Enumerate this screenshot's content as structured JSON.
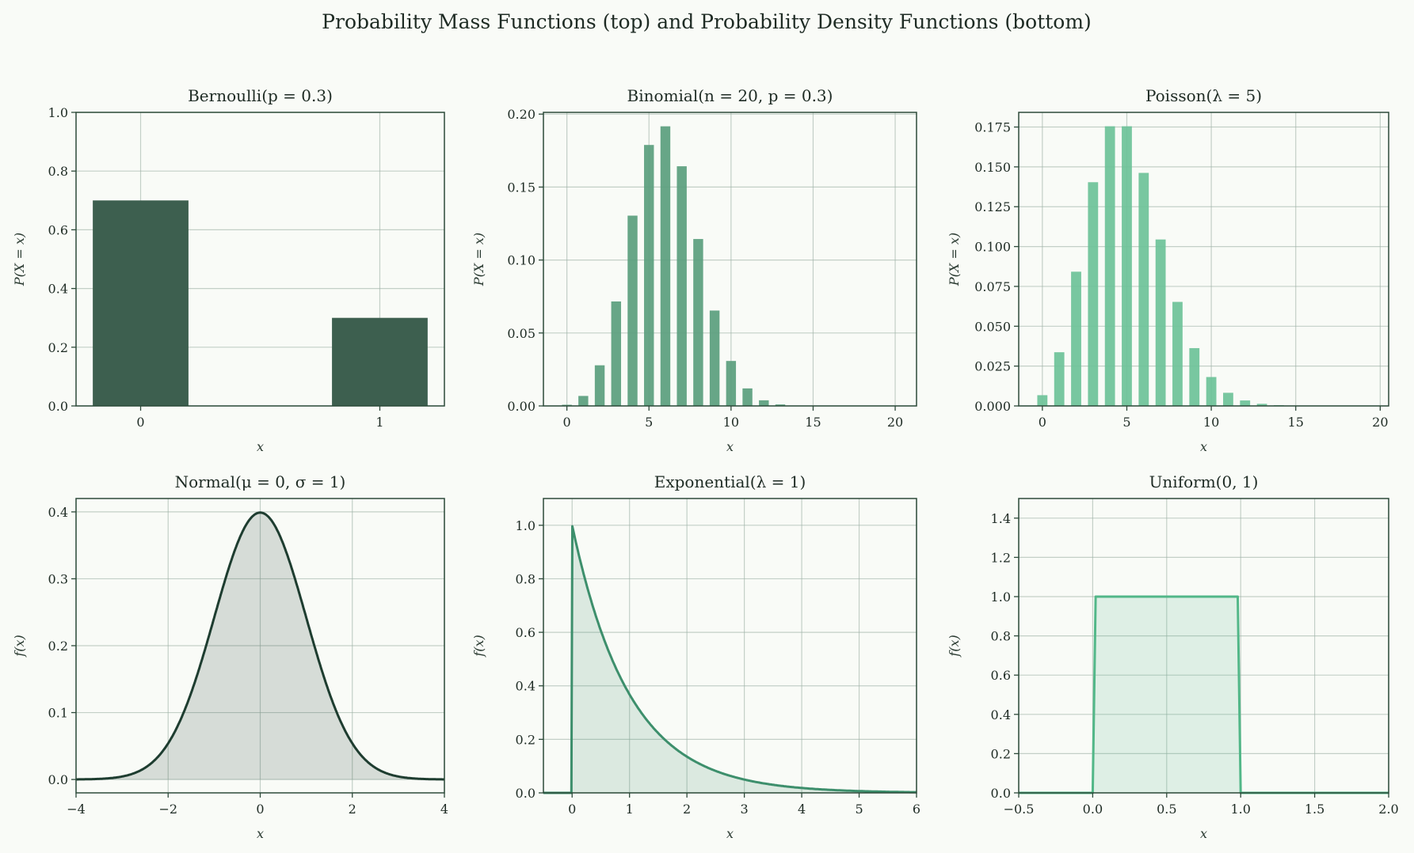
{
  "title": "Probability Mass Functions (top) and Probability Density Functions (bottom)",
  "chart_data": [
    {
      "type": "bar",
      "title": "Bernoulli(p = 0.3)",
      "xlabel": "x",
      "ylabel": "P(X = x)",
      "x": [
        0,
        1
      ],
      "values": [
        0.7,
        0.3
      ],
      "bar_width": 0.4,
      "xlim": [
        -0.27,
        1.27
      ],
      "ylim": [
        0,
        1.0
      ],
      "xticks": [
        0,
        1
      ],
      "xticklabels": [
        "0",
        "1"
      ],
      "yticks": [
        0,
        0.2,
        0.4,
        0.6,
        0.8,
        1.0
      ],
      "yticklabels": [
        "0.0",
        "0.2",
        "0.4",
        "0.6",
        "0.8",
        "1.0"
      ],
      "color": "#3d5f4f",
      "grid": true
    },
    {
      "type": "bar",
      "title": "Binomial(n = 20, p = 0.3)",
      "xlabel": "x",
      "ylabel": "P(X = x)",
      "x": [
        0,
        1,
        2,
        3,
        4,
        5,
        6,
        7,
        8,
        9,
        10,
        11,
        12,
        13,
        14,
        15,
        16,
        17,
        18,
        19,
        20
      ],
      "values": [
        0.000798,
        0.006839,
        0.027846,
        0.071604,
        0.130421,
        0.178863,
        0.191639,
        0.164262,
        0.114397,
        0.06537,
        0.030817,
        0.012007,
        0.003859,
        0.001018,
        0.000218,
        3.74e-05,
        5e-06,
        5e-07,
        4e-08,
        1.6e-09,
        3.49e-11
      ],
      "bar_width": 0.6,
      "xlim": [
        -1.43,
        21.3
      ],
      "ylim": [
        0,
        0.2012
      ],
      "xticks": [
        0,
        5,
        10,
        15,
        20
      ],
      "xticklabels": [
        "0",
        "5",
        "10",
        "15",
        "20"
      ],
      "yticks": [
        0,
        0.05,
        0.1,
        0.15,
        0.2
      ],
      "yticklabels": [
        "0.00",
        "0.05",
        "0.10",
        "0.15",
        "0.20"
      ],
      "color": "#5a9e7d",
      "grid": true
    },
    {
      "type": "bar",
      "title": "Poisson(λ = 5)",
      "xlabel": "x",
      "ylabel": "P(X = x)",
      "x": [
        0,
        1,
        2,
        3,
        4,
        5,
        6,
        7,
        8,
        9,
        10,
        11,
        12,
        13,
        14,
        15,
        16,
        17,
        18,
        19
      ],
      "values": [
        0.006738,
        0.03369,
        0.084224,
        0.140374,
        0.175467,
        0.175467,
        0.146223,
        0.104445,
        0.065278,
        0.036266,
        0.018133,
        0.008242,
        0.003434,
        0.001321,
        0.000472,
        0.000157,
        4.9e-05,
        1.44e-05,
        4e-06,
        1e-06
      ],
      "bar_width": 0.6,
      "xlim": [
        -1.4,
        20.5
      ],
      "ylim": [
        0,
        0.1842
      ],
      "xticks": [
        0,
        5,
        10,
        15,
        20
      ],
      "xticklabels": [
        "0",
        "5",
        "10",
        "15",
        "20"
      ],
      "yticks": [
        0,
        0.025,
        0.05,
        0.075,
        0.1,
        0.125,
        0.15,
        0.175
      ],
      "yticklabels": [
        "0.000",
        "0.025",
        "0.050",
        "0.075",
        "0.100",
        "0.125",
        "0.150",
        "0.175"
      ],
      "color": "#6cc298",
      "grid": true
    },
    {
      "type": "area",
      "title": "Normal(μ = 0, σ = 1)",
      "xlabel": "x",
      "ylabel": "f(x)",
      "distribution": "normal",
      "params": {
        "mu": 0,
        "sigma": 1
      },
      "xlim": [
        -4,
        4
      ],
      "ylim": [
        -0.02,
        0.42
      ],
      "xticks": [
        -4,
        -2,
        0,
        2,
        4
      ],
      "xticklabels": [
        "−4",
        "−2",
        "0",
        "2",
        "4"
      ],
      "yticks": [
        0,
        0.1,
        0.2,
        0.3,
        0.4
      ],
      "yticklabels": [
        "0.0",
        "0.1",
        "0.2",
        "0.3",
        "0.4"
      ],
      "color": "#1e3d30",
      "grid": true
    },
    {
      "type": "area",
      "title": "Exponential(λ = 1)",
      "xlabel": "x",
      "ylabel": "f(x)",
      "distribution": "exponential",
      "params": {
        "lambda": 1
      },
      "xlim": [
        -0.5,
        6
      ],
      "ylim": [
        0,
        1.1
      ],
      "xticks": [
        0,
        1,
        2,
        3,
        4,
        5,
        6
      ],
      "xticklabels": [
        "0",
        "1",
        "2",
        "3",
        "4",
        "5",
        "6"
      ],
      "yticks": [
        0,
        0.2,
        0.4,
        0.6,
        0.8,
        1.0
      ],
      "yticklabels": [
        "0.0",
        "0.2",
        "0.4",
        "0.6",
        "0.8",
        "1.0"
      ],
      "color": "#3d8f6c",
      "grid": true
    },
    {
      "type": "area",
      "title": "Uniform(0, 1)",
      "xlabel": "x",
      "ylabel": "f(x)",
      "distribution": "uniform",
      "params": {
        "a": 0,
        "b": 1
      },
      "xlim": [
        -0.5,
        2
      ],
      "ylim": [
        0,
        1.5
      ],
      "xticks": [
        -0.5,
        0,
        0.5,
        1,
        1.5,
        2
      ],
      "xticklabels": [
        "−0.5",
        "0.0",
        "0.5",
        "1.0",
        "1.5",
        "2.0"
      ],
      "yticks": [
        0,
        0.2,
        0.4,
        0.6,
        0.8,
        1.0,
        1.2,
        1.4
      ],
      "yticklabels": [
        "0.0",
        "0.2",
        "0.4",
        "0.6",
        "0.8",
        "1.0",
        "1.2",
        "1.4"
      ],
      "color": "#52b788",
      "grid": true
    }
  ]
}
